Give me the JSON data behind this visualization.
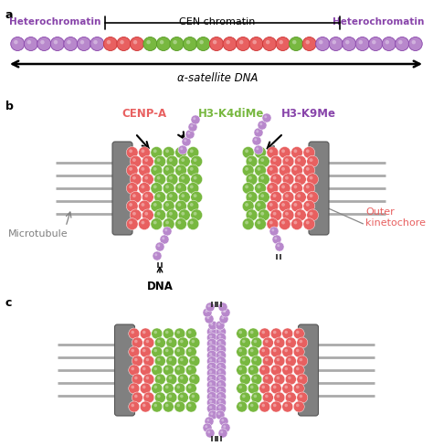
{
  "bg_color": "#ffffff",
  "panel_a": {
    "label": "a",
    "heterochromatin_text": "Heterochromatin",
    "cen_text": "CEN chromatin",
    "alpha_sat_text": "α-satellite DNA",
    "het_color": "#8844aa",
    "red_color": "#e86060",
    "green_color": "#78b840",
    "purple_bead_color": "#b888cc",
    "bead_sequence": [
      "p",
      "p",
      "p",
      "p",
      "p",
      "p",
      "p",
      "r",
      "r",
      "r",
      "g",
      "g",
      "g",
      "g",
      "g",
      "r",
      "r",
      "r",
      "r",
      "r",
      "r",
      "g",
      "r",
      "p",
      "p",
      "p",
      "p",
      "p",
      "p",
      "p",
      "p"
    ],
    "arrow_color": "#111111"
  },
  "panel_b": {
    "label": "b",
    "cenpa_label": "CENP-A",
    "cenpa_color": "#e86060",
    "h3k4_label": "H3-K4diMe",
    "h3k4_color": "#78b840",
    "h3k9_label": "H3-K9Me",
    "h3k9_color": "#8844aa",
    "red_bead": "#e86060",
    "green_bead": "#78b840",
    "purple_bead": "#b888cc",
    "gray_disk": "#888888",
    "microtubule_color": "#aaaaaa",
    "dna_label": "DNA",
    "microtubule_label": "Microtubule",
    "outer_kineto_label": "Outer\nkinetochore",
    "outer_kineto_color": "#e86060"
  },
  "panel_c": {
    "label": "c"
  }
}
